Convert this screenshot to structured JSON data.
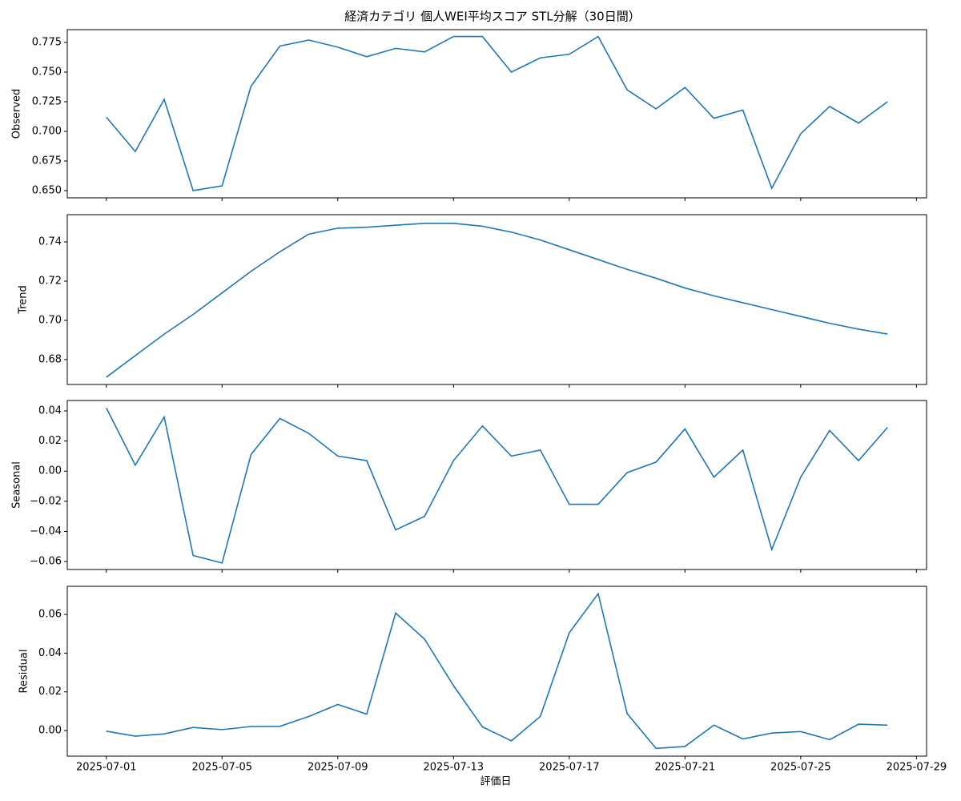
{
  "chart_data": [
    {
      "type": "line",
      "title": "経済カテゴリ 個人WEI平均スコア STL分解（30日間）",
      "ylabel": "Observed",
      "color": "#1f77b4",
      "x": [
        "2025-07-01",
        "2025-07-02",
        "2025-07-03",
        "2025-07-04",
        "2025-07-05",
        "2025-07-06",
        "2025-07-07",
        "2025-07-08",
        "2025-07-09",
        "2025-07-10",
        "2025-07-11",
        "2025-07-12",
        "2025-07-13",
        "2025-07-14",
        "2025-07-15",
        "2025-07-16",
        "2025-07-17",
        "2025-07-18",
        "2025-07-19",
        "2025-07-20",
        "2025-07-21",
        "2025-07-22",
        "2025-07-23",
        "2025-07-24",
        "2025-07-25",
        "2025-07-26",
        "2025-07-27",
        "2025-07-28"
      ],
      "values": [
        0.712,
        0.683,
        0.727,
        0.65,
        0.654,
        0.738,
        0.772,
        0.777,
        0.771,
        0.763,
        0.77,
        0.767,
        0.78,
        0.78,
        0.75,
        0.762,
        0.765,
        0.78,
        0.735,
        0.719,
        0.737,
        0.711,
        0.718,
        0.652,
        0.698,
        0.721,
        0.707,
        0.725
      ],
      "ylim": [
        0.6439,
        0.7858
      ],
      "yticks": [
        {
          "value": 0.65,
          "label": "0.650"
        },
        {
          "value": 0.675,
          "label": "0.675"
        },
        {
          "value": 0.7,
          "label": "0.700"
        },
        {
          "value": 0.725,
          "label": "0.725"
        },
        {
          "value": 0.75,
          "label": "0.750"
        },
        {
          "value": 0.775,
          "label": "0.775"
        }
      ]
    },
    {
      "type": "line",
      "ylabel": "Trend",
      "color": "#1f77b4",
      "x": [
        "2025-07-01",
        "2025-07-02",
        "2025-07-03",
        "2025-07-04",
        "2025-07-05",
        "2025-07-06",
        "2025-07-07",
        "2025-07-08",
        "2025-07-09",
        "2025-07-10",
        "2025-07-11",
        "2025-07-12",
        "2025-07-13",
        "2025-07-14",
        "2025-07-15",
        "2025-07-16",
        "2025-07-17",
        "2025-07-18",
        "2025-07-19",
        "2025-07-20",
        "2025-07-21",
        "2025-07-22",
        "2025-07-23",
        "2025-07-24",
        "2025-07-25",
        "2025-07-26",
        "2025-07-27",
        "2025-07-28"
      ],
      "values": [
        0.671,
        0.682,
        0.693,
        0.703,
        0.714,
        0.725,
        0.735,
        0.744,
        0.747,
        0.7475,
        0.7485,
        0.7495,
        0.7495,
        0.748,
        0.745,
        0.741,
        0.736,
        0.731,
        0.726,
        0.7215,
        0.7165,
        0.7125,
        0.709,
        0.7055,
        0.702,
        0.6985,
        0.6955,
        0.693
      ],
      "ylim": [
        0.6673,
        0.7539
      ],
      "yticks": [
        {
          "value": 0.68,
          "label": "0.68"
        },
        {
          "value": 0.7,
          "label": "0.70"
        },
        {
          "value": 0.72,
          "label": "0.72"
        },
        {
          "value": 0.74,
          "label": "0.74"
        }
      ]
    },
    {
      "type": "line",
      "ylabel": "Seasonal",
      "color": "#1f77b4",
      "x": [
        "2025-07-01",
        "2025-07-02",
        "2025-07-03",
        "2025-07-04",
        "2025-07-05",
        "2025-07-06",
        "2025-07-07",
        "2025-07-08",
        "2025-07-09",
        "2025-07-10",
        "2025-07-11",
        "2025-07-12",
        "2025-07-13",
        "2025-07-14",
        "2025-07-15",
        "2025-07-16",
        "2025-07-17",
        "2025-07-18",
        "2025-07-19",
        "2025-07-20",
        "2025-07-21",
        "2025-07-22",
        "2025-07-23",
        "2025-07-24",
        "2025-07-25",
        "2025-07-26",
        "2025-07-27",
        "2025-07-28"
      ],
      "values": [
        0.042,
        0.004,
        0.036,
        -0.056,
        -0.061,
        0.011,
        0.035,
        0.025,
        0.01,
        0.007,
        -0.039,
        -0.03,
        0.007,
        0.03,
        0.01,
        0.014,
        -0.022,
        -0.022,
        -0.001,
        0.006,
        0.028,
        -0.004,
        0.014,
        -0.052,
        -0.004,
        0.027,
        0.007,
        0.029
      ],
      "ylim": [
        -0.0653,
        0.0469
      ],
      "yticks": [
        {
          "value": -0.06,
          "label": "−0.06"
        },
        {
          "value": -0.04,
          "label": "−0.04"
        },
        {
          "value": -0.02,
          "label": "−0.02"
        },
        {
          "value": 0,
          "label": "0.00"
        },
        {
          "value": 0.02,
          "label": "0.02"
        },
        {
          "value": 0.04,
          "label": "0.04"
        }
      ]
    },
    {
      "type": "line",
      "ylabel": "Residual",
      "xlabel": "評価日",
      "color": "#1f77b4",
      "x": [
        "2025-07-01",
        "2025-07-02",
        "2025-07-03",
        "2025-07-04",
        "2025-07-05",
        "2025-07-06",
        "2025-07-07",
        "2025-07-08",
        "2025-07-09",
        "2025-07-10",
        "2025-07-11",
        "2025-07-12",
        "2025-07-13",
        "2025-07-14",
        "2025-07-15",
        "2025-07-16",
        "2025-07-17",
        "2025-07-18",
        "2025-07-19",
        "2025-07-20",
        "2025-07-21",
        "2025-07-22",
        "2025-07-23",
        "2025-07-24",
        "2025-07-25",
        "2025-07-26",
        "2025-07-27",
        "2025-07-28"
      ],
      "values": [
        -0.0003,
        -0.0029,
        -0.0017,
        0.0016,
        0.0005,
        0.0021,
        0.0022,
        0.0073,
        0.0135,
        0.0085,
        0.0607,
        0.0472,
        0.0232,
        0.0019,
        -0.0053,
        0.0073,
        0.0505,
        0.0707,
        0.0088,
        -0.0092,
        -0.0082,
        0.0028,
        -0.0043,
        -0.0013,
        -0.0005,
        -0.0047,
        0.0033,
        0.0028
      ],
      "ylim": [
        -0.0132,
        0.0745
      ],
      "yticks": [
        {
          "value": 0,
          "label": "0.00"
        },
        {
          "value": 0.02,
          "label": "0.02"
        },
        {
          "value": 0.04,
          "label": "0.04"
        },
        {
          "value": 0.06,
          "label": "0.06"
        }
      ],
      "xlim": [
        "2025-06-29T15:36",
        "2025-07-29T08:24"
      ],
      "xticks": [
        "2025-07-01",
        "2025-07-05",
        "2025-07-09",
        "2025-07-13",
        "2025-07-17",
        "2025-07-21",
        "2025-07-25",
        "2025-07-29"
      ]
    }
  ]
}
